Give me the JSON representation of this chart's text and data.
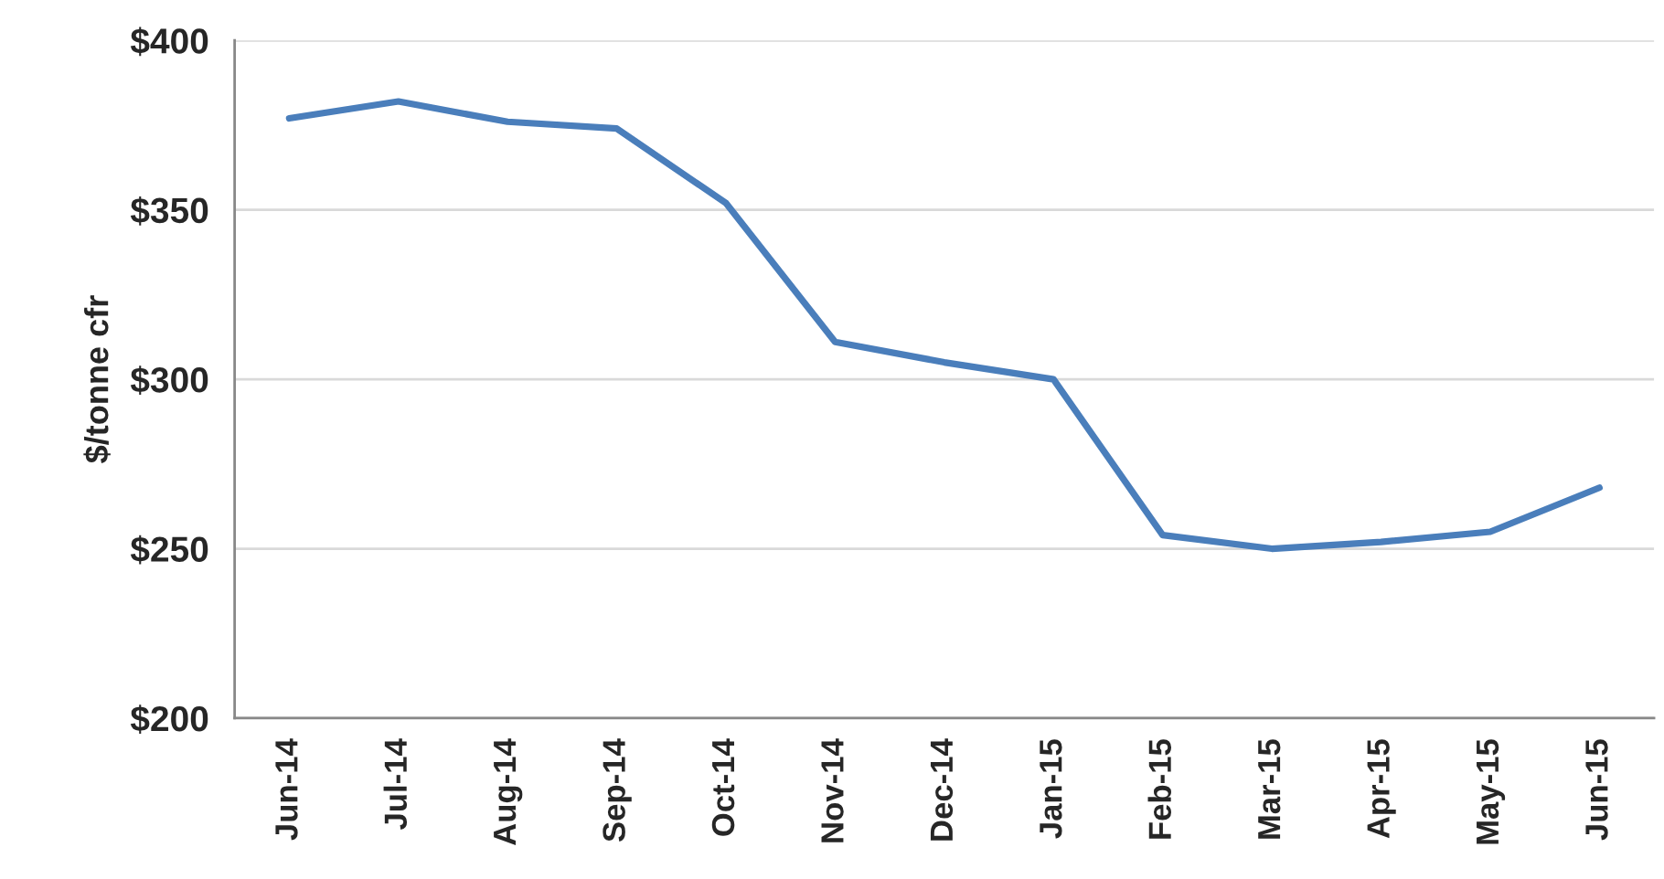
{
  "chart_data": {
    "type": "line",
    "ylabel": "$/tonne cfr",
    "categories": [
      "Jun-14",
      "Jul-14",
      "Aug-14",
      "Sep-14",
      "Oct-14",
      "Nov-14",
      "Dec-14",
      "Jan-15",
      "Feb-15",
      "Mar-15",
      "Apr-15",
      "May-15",
      "Jun-15"
    ],
    "series": [
      {
        "color": "#4a7ebb",
        "values": [
          377,
          382,
          376,
          374,
          352,
          311,
          305,
          300,
          254,
          250,
          252,
          255,
          268
        ]
      }
    ],
    "ylim": [
      200,
      400
    ],
    "yticks": [
      {
        "value": 200,
        "label": "$200"
      },
      {
        "value": 250,
        "label": "$250"
      },
      {
        "value": 300,
        "label": "$300"
      },
      {
        "value": 350,
        "label": "$350"
      },
      {
        "value": 400,
        "label": "$400"
      }
    ],
    "grid": "y",
    "legend": false,
    "marker": "none",
    "line_style": "solid"
  }
}
